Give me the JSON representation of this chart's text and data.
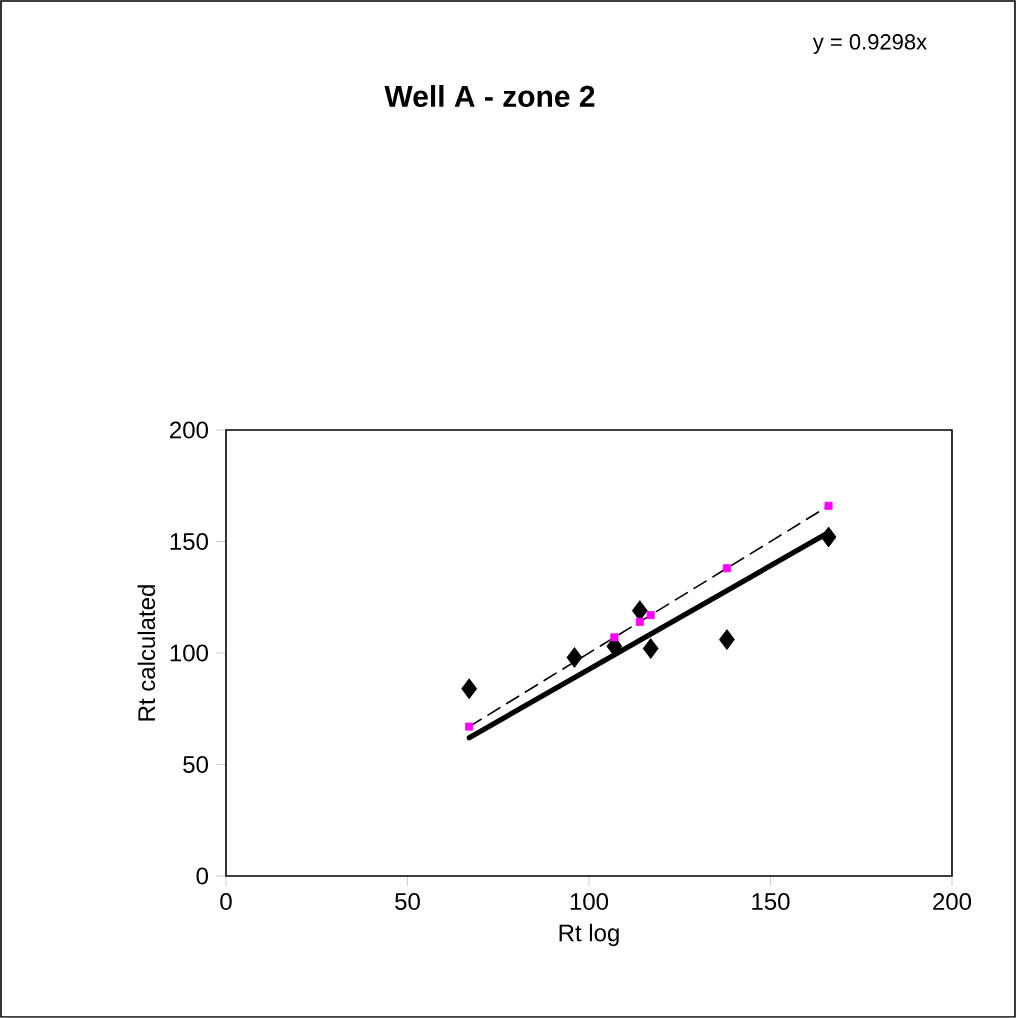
{
  "chart_data": {
    "type": "scatter",
    "title": "Well A - zone 2",
    "xlabel": "Rt log",
    "ylabel": "Rt calculated",
    "annotations": [
      "y = 0.9298x"
    ],
    "xlim": [
      0,
      200
    ],
    "ylim": [
      0,
      200
    ],
    "xticks": [
      0,
      50,
      100,
      150,
      200
    ],
    "yticks": [
      0,
      50,
      100,
      150,
      200
    ],
    "grid": false,
    "series": [
      {
        "type": "line",
        "color": "#000000",
        "line_style": "dashed",
        "marker": "none",
        "x": [
          67,
          166
        ],
        "values": [
          67,
          166
        ]
      },
      {
        "type": "line",
        "color": "#000000",
        "line_style": "solid",
        "marker": "none",
        "x": [
          67,
          166
        ],
        "values": [
          62,
          154
        ]
      },
      {
        "type": "scatter",
        "color": "#000000",
        "marker": "diamond",
        "x": [
          67,
          96,
          107,
          114,
          117,
          138,
          166
        ],
        "values": [
          84,
          98,
          103,
          119,
          102,
          106,
          152
        ]
      },
      {
        "type": "scatter",
        "color": "#ff00ff",
        "marker": "square",
        "x": [
          67,
          107,
          114,
          117,
          138,
          166
        ],
        "values": [
          67,
          107,
          114,
          117,
          138,
          166
        ]
      }
    ]
  }
}
